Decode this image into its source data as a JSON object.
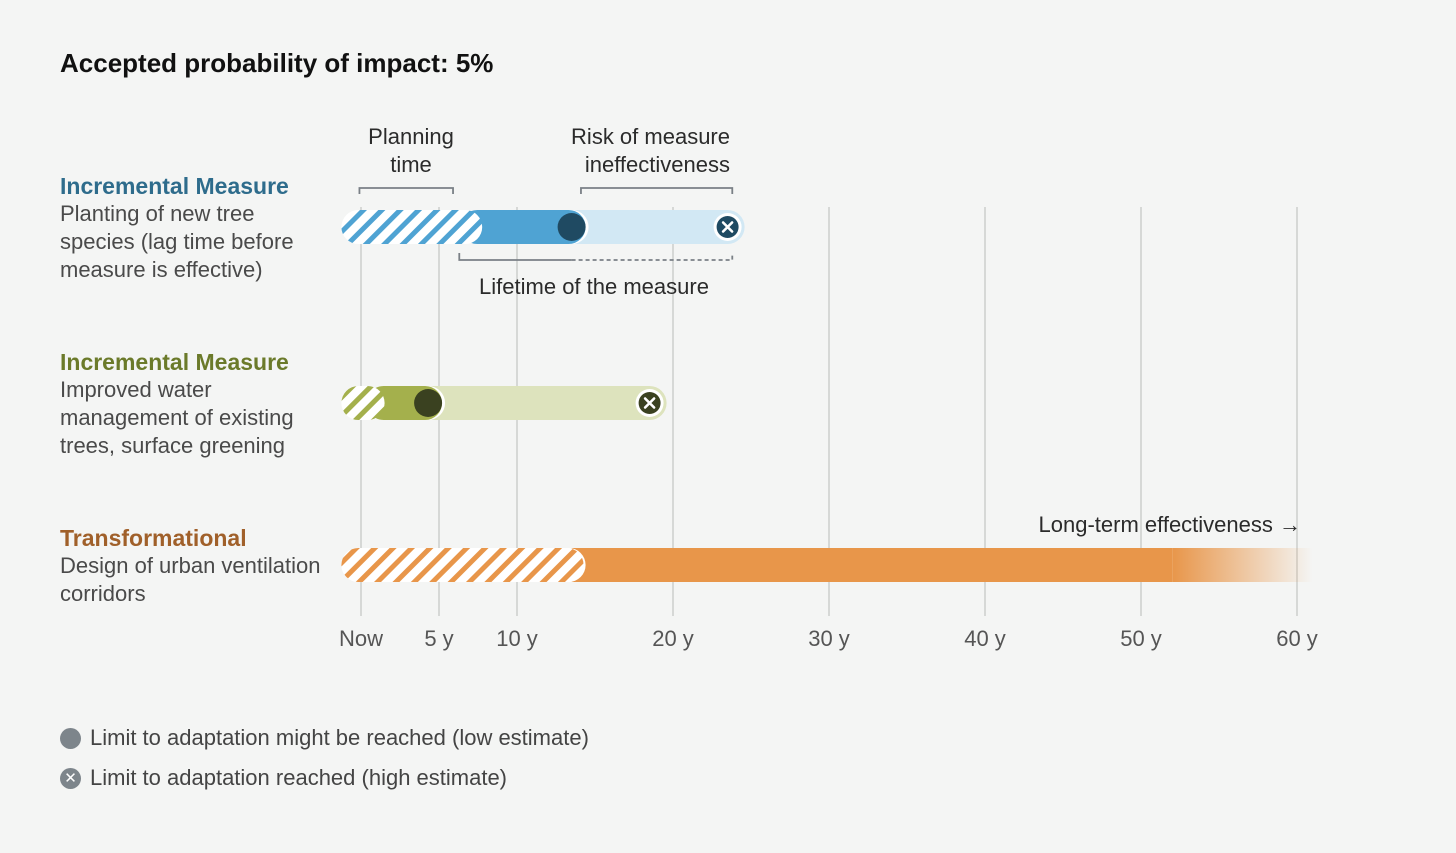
{
  "title": "Accepted probability of impact: 5%",
  "rows": [
    {
      "kind": "Incremental Measure",
      "desc": "Planting of new tree species (lag time before measure is effective)"
    },
    {
      "kind": "Incremental Measure",
      "desc": "Improved water management of existing trees, surface greening"
    },
    {
      "kind": "Transformational",
      "desc": "Design of urban ventilation corridors"
    }
  ],
  "annotations": {
    "planning_time_line1": "Planning",
    "planning_time_line2": "time",
    "risk_line1": "Risk of measure",
    "risk_line2": "ineffectiveness",
    "lifetime": "Lifetime of the measure",
    "long_term": "Long-term effectiveness →"
  },
  "legend": {
    "low": "Limit to adaptation might be reached (low estimate)",
    "high": "Limit to adaptation reached (high estimate)"
  },
  "chart_data": {
    "type": "timeline",
    "x_unit": "years",
    "xlim": [
      0,
      60
    ],
    "tick_values": [
      0,
      5,
      10,
      20,
      30,
      40,
      50,
      60
    ],
    "tick_labels": [
      "Now",
      "5 y",
      "10 y",
      "20 y",
      "30 y",
      "40 y",
      "50 y",
      "60 y"
    ],
    "grid": true,
    "series": [
      {
        "planning": [
          -1,
          7
        ],
        "effective_start": 7,
        "low_limit": 13.5,
        "high_limit": 23.5
      },
      {
        "planning": [
          -1,
          1
        ],
        "effective_start": 1,
        "low_limit": 4.3,
        "high_limit": 18.5
      },
      {
        "planning": [
          -1,
          13.5
        ],
        "effective_start": 13.5,
        "fades_after": 52,
        "ends_at": 61
      }
    ],
    "colors": {
      "s1_dark": "#4fa3d3",
      "s1_light": "#d2e8f4",
      "s1_marker": "#1f4a62",
      "s2_dark": "#a4b04c",
      "s2_light": "#dde3bd",
      "s2_marker": "#3a4120",
      "s3": "#e8964a",
      "grid": "#d6d8d6"
    }
  }
}
